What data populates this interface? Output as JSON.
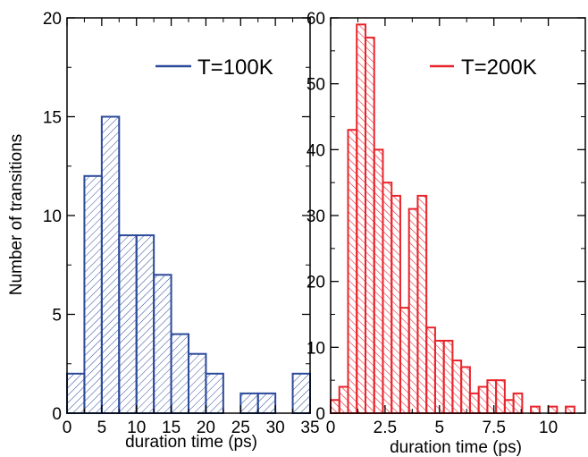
{
  "chart_data": [
    {
      "type": "bar",
      "panel": "left",
      "histogram": true,
      "bin_width": 2.5,
      "bins": [
        {
          "x0": 0,
          "x1": 2.5,
          "value": 2
        },
        {
          "x0": 2.5,
          "x1": 5,
          "value": 12
        },
        {
          "x0": 5,
          "x1": 7.5,
          "value": 15
        },
        {
          "x0": 7.5,
          "x1": 10,
          "value": 9
        },
        {
          "x0": 10,
          "x1": 12.5,
          "value": 9
        },
        {
          "x0": 12.5,
          "x1": 15,
          "value": 7
        },
        {
          "x0": 15,
          "x1": 17.5,
          "value": 4
        },
        {
          "x0": 17.5,
          "x1": 20,
          "value": 3
        },
        {
          "x0": 20,
          "x1": 22.5,
          "value": 2
        },
        {
          "x0": 22.5,
          "x1": 25,
          "value": 0
        },
        {
          "x0": 25,
          "x1": 27.5,
          "value": 1
        },
        {
          "x0": 27.5,
          "x1": 30,
          "value": 1
        },
        {
          "x0": 30,
          "x1": 32.5,
          "value": 0
        },
        {
          "x0": 32.5,
          "x1": 35,
          "value": 2
        }
      ],
      "series_name": "T=100K",
      "color": "#2b4a9a",
      "xlabel": "duration time (ps)",
      "ylabel": "Number of transitions",
      "xlim": [
        0,
        35
      ],
      "ylim": [
        0,
        20
      ],
      "xticks": [
        0,
        5,
        10,
        15,
        20,
        25,
        30,
        35
      ],
      "xtick_labels": [
        "0",
        "5",
        "10",
        "15",
        "20",
        "25",
        "30",
        "35"
      ],
      "yticks": [
        0,
        5,
        10,
        15,
        20
      ],
      "ytick_labels": [
        "0",
        "5",
        "10",
        "15",
        "20"
      ],
      "legend": "top-right",
      "grid": false
    },
    {
      "type": "bar",
      "panel": "right",
      "histogram": true,
      "bin_width": 0.4,
      "bins": [
        {
          "x0": 0.0,
          "x1": 0.4,
          "value": 2
        },
        {
          "x0": 0.4,
          "x1": 0.8,
          "value": 4
        },
        {
          "x0": 0.8,
          "x1": 1.2,
          "value": 43
        },
        {
          "x0": 1.2,
          "x1": 1.6,
          "value": 59
        },
        {
          "x0": 1.6,
          "x1": 2.0,
          "value": 57
        },
        {
          "x0": 2.0,
          "x1": 2.4,
          "value": 40
        },
        {
          "x0": 2.4,
          "x1": 2.8,
          "value": 35
        },
        {
          "x0": 2.8,
          "x1": 3.2,
          "value": 33
        },
        {
          "x0": 3.2,
          "x1": 3.6,
          "value": 16
        },
        {
          "x0": 3.6,
          "x1": 4.0,
          "value": 31
        },
        {
          "x0": 4.0,
          "x1": 4.4,
          "value": 33
        },
        {
          "x0": 4.4,
          "x1": 4.8,
          "value": 13
        },
        {
          "x0": 4.8,
          "x1": 5.2,
          "value": 11
        },
        {
          "x0": 5.2,
          "x1": 5.6,
          "value": 11
        },
        {
          "x0": 5.6,
          "x1": 6.0,
          "value": 8
        },
        {
          "x0": 6.0,
          "x1": 6.4,
          "value": 7
        },
        {
          "x0": 6.4,
          "x1": 6.8,
          "value": 3
        },
        {
          "x0": 6.8,
          "x1": 7.2,
          "value": 4
        },
        {
          "x0": 7.2,
          "x1": 7.6,
          "value": 5
        },
        {
          "x0": 7.6,
          "x1": 8.0,
          "value": 5
        },
        {
          "x0": 8.0,
          "x1": 8.4,
          "value": 2
        },
        {
          "x0": 8.4,
          "x1": 8.8,
          "value": 3
        },
        {
          "x0": 8.8,
          "x1": 9.2,
          "value": 0
        },
        {
          "x0": 9.2,
          "x1": 9.6,
          "value": 1
        },
        {
          "x0": 9.6,
          "x1": 10.0,
          "value": 0
        },
        {
          "x0": 10.0,
          "x1": 10.4,
          "value": 1
        },
        {
          "x0": 10.4,
          "x1": 10.8,
          "value": 0
        },
        {
          "x0": 10.8,
          "x1": 11.2,
          "value": 1
        }
      ],
      "series_name": "T=200K",
      "color": "#e8242b",
      "xlabel": "duration time (ps)",
      "ylabel": "",
      "xlim": [
        0,
        11.7
      ],
      "ylim": [
        0,
        60
      ],
      "xticks": [
        0,
        2.5,
        5,
        7.5,
        10
      ],
      "xtick_labels": [
        "0",
        "2.5",
        "5",
        "7.5",
        "10"
      ],
      "yticks": [
        0,
        10,
        20,
        30,
        40,
        50,
        60
      ],
      "ytick_labels": [
        "0",
        "10",
        "20",
        "30",
        "40",
        "50",
        "60"
      ],
      "legend": "top-right",
      "grid": false
    }
  ]
}
